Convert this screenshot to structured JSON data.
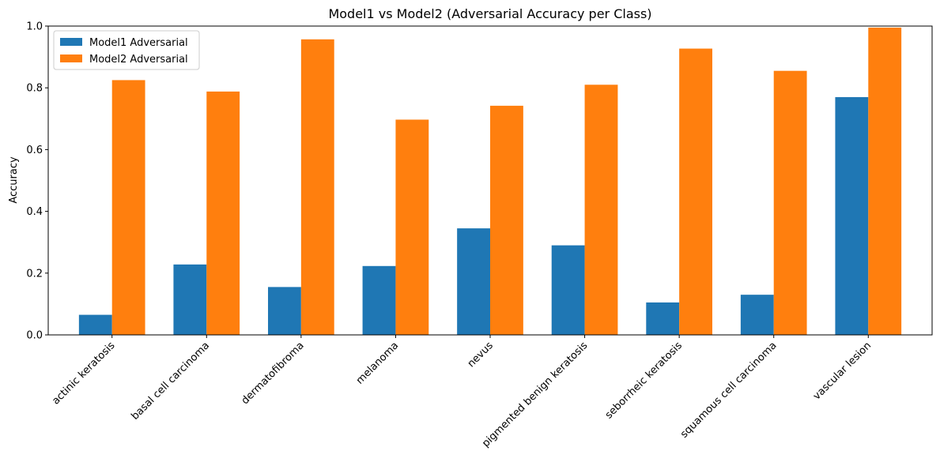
{
  "chart_data": {
    "type": "bar",
    "title": "Model1 vs Model2 (Adversarial Accuracy per Class)",
    "xlabel": "",
    "ylabel": "Accuracy",
    "ylim": [
      0,
      1.0
    ],
    "yticks": [
      "0.0",
      "0.2",
      "0.4",
      "0.6",
      "0.8",
      "1.0"
    ],
    "grid": false,
    "legend_position": "top-left",
    "categories": [
      "actinic keratosis",
      "basal cell carcinoma",
      "dermatofibroma",
      "melanoma",
      "nevus",
      "pigmented benign keratosis",
      "seborrheic keratosis",
      "squamous cell carcinoma",
      "vascular lesion"
    ],
    "series": [
      {
        "name": "Model1 Adversarial",
        "color": "#1f77b4",
        "values": [
          0.065,
          0.228,
          0.155,
          0.223,
          0.345,
          0.29,
          0.105,
          0.13,
          0.77
        ]
      },
      {
        "name": "Model2 Adversarial",
        "color": "#ff7f0e",
        "values": [
          0.825,
          0.788,
          0.957,
          0.697,
          0.742,
          0.81,
          0.927,
          0.855,
          0.995
        ]
      }
    ]
  }
}
